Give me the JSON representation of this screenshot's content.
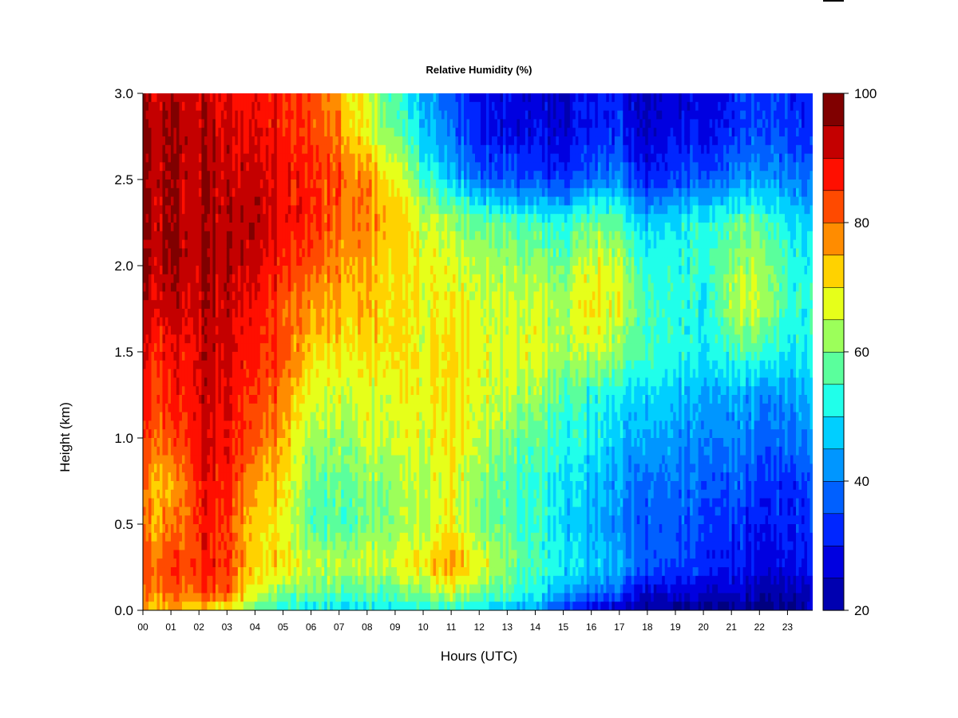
{
  "chart_data": {
    "type": "heatmap",
    "title": "Relative Humidity (%)",
    "xlabel": "Hours (UTC)",
    "ylabel": "Height (km)",
    "x_ticks": [
      "00",
      "01",
      "02",
      "03",
      "04",
      "05",
      "06",
      "07",
      "08",
      "09",
      "10",
      "11",
      "12",
      "13",
      "14",
      "15",
      "16",
      "17",
      "18",
      "19",
      "20",
      "21",
      "22",
      "23"
    ],
    "y_ticks": [
      "0.0",
      "0.5",
      "1.0",
      "1.5",
      "2.0",
      "2.5",
      "3.0"
    ],
    "xlim": [
      0,
      23.9
    ],
    "ylim": [
      0,
      3.0
    ],
    "colorbar": {
      "ticks": [
        "20",
        "40",
        "60",
        "80",
        "100"
      ],
      "range": [
        20,
        100
      ],
      "levels": 16,
      "colors": [
        "#000080",
        "#0000b0",
        "#0000e0",
        "#0026ff",
        "#0060ff",
        "#0096ff",
        "#00cfff",
        "#20ffea",
        "#5aff9c",
        "#9cff5a",
        "#e6ff1a",
        "#ffd200",
        "#ff8c00",
        "#ff4a00",
        "#ff0f00",
        "#c40000",
        "#800000"
      ]
    },
    "heights_km": [
      0.0,
      0.1,
      0.25,
      0.5,
      0.75,
      1.0,
      1.25,
      1.5,
      1.75,
      2.0,
      2.25,
      2.5,
      2.75,
      3.0
    ],
    "hours": [
      0,
      1,
      2,
      3,
      4,
      5,
      6,
      7,
      8,
      9,
      10,
      11,
      12,
      13,
      14,
      15,
      16,
      17,
      18,
      19,
      20,
      21,
      22,
      23,
      23.9
    ],
    "values": [
      [
        78,
        78,
        76,
        72,
        62,
        58,
        55,
        55,
        55,
        55,
        56,
        57,
        55,
        52,
        48,
        38,
        30,
        28,
        25,
        24,
        24,
        24,
        23,
        24,
        30
      ],
      [
        83,
        85,
        88,
        88,
        72,
        66,
        62,
        62,
        62,
        63,
        66,
        70,
        66,
        60,
        55,
        50,
        45,
        42,
        30,
        32,
        30,
        30,
        28,
        28,
        30
      ],
      [
        86,
        88,
        92,
        90,
        75,
        78,
        68,
        70,
        70,
        72,
        76,
        82,
        74,
        66,
        60,
        56,
        52,
        50,
        42,
        40,
        38,
        36,
        34,
        34,
        36
      ],
      [
        82,
        82,
        92,
        90,
        75,
        76,
        60,
        62,
        64,
        66,
        70,
        74,
        66,
        62,
        58,
        54,
        50,
        46,
        42,
        42,
        40,
        38,
        36,
        36,
        40
      ],
      [
        84,
        78,
        94,
        92,
        80,
        78,
        62,
        64,
        66,
        68,
        70,
        74,
        66,
        62,
        58,
        56,
        52,
        48,
        44,
        44,
        42,
        42,
        40,
        38,
        42
      ],
      [
        88,
        86,
        95,
        94,
        86,
        82,
        66,
        68,
        70,
        70,
        72,
        76,
        70,
        66,
        62,
        58,
        56,
        52,
        50,
        48,
        46,
        46,
        44,
        44,
        48
      ],
      [
        90,
        90,
        96,
        95,
        88,
        86,
        70,
        72,
        72,
        72,
        74,
        76,
        72,
        70,
        66,
        62,
        58,
        56,
        54,
        52,
        50,
        50,
        48,
        48,
        52
      ],
      [
        92,
        92,
        97,
        96,
        90,
        90,
        76,
        76,
        76,
        76,
        74,
        76,
        74,
        72,
        72,
        68,
        70,
        66,
        60,
        58,
        56,
        60,
        62,
        56,
        58
      ],
      [
        96,
        96,
        98,
        97,
        92,
        88,
        80,
        80,
        78,
        76,
        74,
        74,
        72,
        70,
        70,
        68,
        76,
        72,
        60,
        58,
        56,
        68,
        72,
        60,
        58
      ],
      [
        99,
        99,
        99,
        99,
        96,
        92,
        86,
        82,
        80,
        76,
        74,
        72,
        70,
        68,
        66,
        64,
        72,
        70,
        58,
        58,
        58,
        66,
        70,
        60,
        56
      ],
      [
        99,
        99,
        99,
        99,
        98,
        96,
        90,
        86,
        84,
        78,
        72,
        68,
        64,
        62,
        60,
        58,
        64,
        62,
        52,
        56,
        58,
        62,
        64,
        56,
        52
      ],
      [
        99,
        99,
        99,
        98,
        96,
        94,
        90,
        88,
        82,
        74,
        62,
        52,
        44,
        42,
        40,
        38,
        44,
        46,
        36,
        40,
        42,
        46,
        50,
        46,
        44
      ],
      [
        99,
        99,
        99,
        96,
        94,
        94,
        88,
        84,
        74,
        64,
        54,
        44,
        36,
        34,
        32,
        32,
        36,
        38,
        30,
        34,
        34,
        38,
        42,
        40,
        38
      ],
      [
        98,
        98,
        98,
        94,
        92,
        92,
        86,
        80,
        70,
        60,
        50,
        42,
        34,
        32,
        30,
        30,
        34,
        36,
        28,
        32,
        32,
        36,
        40,
        38,
        36
      ]
    ]
  }
}
